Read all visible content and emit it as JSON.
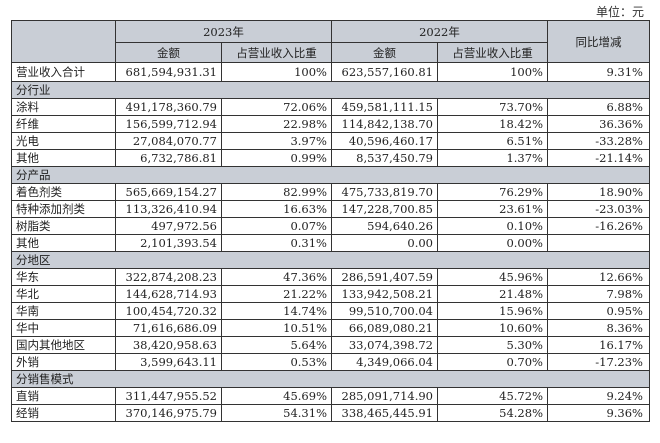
{
  "unit_label": "单位：元",
  "header": {
    "year_2023": "2023年",
    "year_2022": "2022年",
    "amount": "金额",
    "ratio": "占营业收入比重",
    "yoy": "同比增减"
  },
  "total": {
    "label": "营业收入合计",
    "amount_2023": "681,594,931.31",
    "ratio_2023": "100%",
    "amount_2022": "623,557,160.81",
    "ratio_2022": "100%",
    "yoy": "9.31%"
  },
  "sections": [
    {
      "title": "分行业",
      "rows": [
        {
          "label": "涂料",
          "amount_2023": "491,178,360.79",
          "ratio_2023": "72.06%",
          "amount_2022": "459,581,111.15",
          "ratio_2022": "73.70%",
          "yoy": "6.88%"
        },
        {
          "label": "纤维",
          "amount_2023": "156,599,712.94",
          "ratio_2023": "22.98%",
          "amount_2022": "114,842,138.70",
          "ratio_2022": "18.42%",
          "yoy": "36.36%"
        },
        {
          "label": "光电",
          "amount_2023": "27,084,070.77",
          "ratio_2023": "3.97%",
          "amount_2022": "40,596,460.17",
          "ratio_2022": "6.51%",
          "yoy": "-33.28%"
        },
        {
          "label": "其他",
          "amount_2023": "6,732,786.81",
          "ratio_2023": "0.99%",
          "amount_2022": "8,537,450.79",
          "ratio_2022": "1.37%",
          "yoy": "-21.14%"
        }
      ]
    },
    {
      "title": "分产品",
      "rows": [
        {
          "label": "着色剂类",
          "amount_2023": "565,669,154.27",
          "ratio_2023": "82.99%",
          "amount_2022": "475,733,819.70",
          "ratio_2022": "76.29%",
          "yoy": "18.90%"
        },
        {
          "label": "特种添加剂类",
          "amount_2023": "113,326,410.94",
          "ratio_2023": "16.63%",
          "amount_2022": "147,228,700.85",
          "ratio_2022": "23.61%",
          "yoy": "-23.03%"
        },
        {
          "label": "树脂类",
          "amount_2023": "497,972.56",
          "ratio_2023": "0.07%",
          "amount_2022": "594,640.26",
          "ratio_2022": "0.10%",
          "yoy": "-16.26%"
        },
        {
          "label": "其他",
          "amount_2023": "2,101,393.54",
          "ratio_2023": "0.31%",
          "amount_2022": "0.00",
          "ratio_2022": "0.00%",
          "yoy": ""
        }
      ]
    },
    {
      "title": "分地区",
      "rows": [
        {
          "label": "华东",
          "amount_2023": "322,874,208.23",
          "ratio_2023": "47.36%",
          "amount_2022": "286,591,407.59",
          "ratio_2022": "45.96%",
          "yoy": "12.66%"
        },
        {
          "label": "华北",
          "amount_2023": "144,628,714.93",
          "ratio_2023": "21.22%",
          "amount_2022": "133,942,508.21",
          "ratio_2022": "21.48%",
          "yoy": "7.98%"
        },
        {
          "label": "华南",
          "amount_2023": "100,454,720.32",
          "ratio_2023": "14.74%",
          "amount_2022": "99,510,700.04",
          "ratio_2022": "15.96%",
          "yoy": "0.95%"
        },
        {
          "label": "华中",
          "amount_2023": "71,616,686.09",
          "ratio_2023": "10.51%",
          "amount_2022": "66,089,080.21",
          "ratio_2022": "10.60%",
          "yoy": "8.36%"
        },
        {
          "label": "国内其他地区",
          "amount_2023": "38,420,958.63",
          "ratio_2023": "5.64%",
          "amount_2022": "33,074,398.72",
          "ratio_2022": "5.30%",
          "yoy": "16.17%"
        },
        {
          "label": "外销",
          "amount_2023": "3,599,643.11",
          "ratio_2023": "0.53%",
          "amount_2022": "4,349,066.04",
          "ratio_2022": "0.70%",
          "yoy": "-17.23%"
        }
      ]
    },
    {
      "title": "分销售模式",
      "rows": [
        {
          "label": "直销",
          "amount_2023": "311,447,955.52",
          "ratio_2023": "45.69%",
          "amount_2022": "285,091,714.90",
          "ratio_2022": "45.72%",
          "yoy": "9.24%"
        },
        {
          "label": "经销",
          "amount_2023": "370,146,975.79",
          "ratio_2023": "54.31%",
          "amount_2022": "338,465,445.91",
          "ratio_2022": "54.28%",
          "yoy": "9.36%"
        }
      ]
    }
  ]
}
